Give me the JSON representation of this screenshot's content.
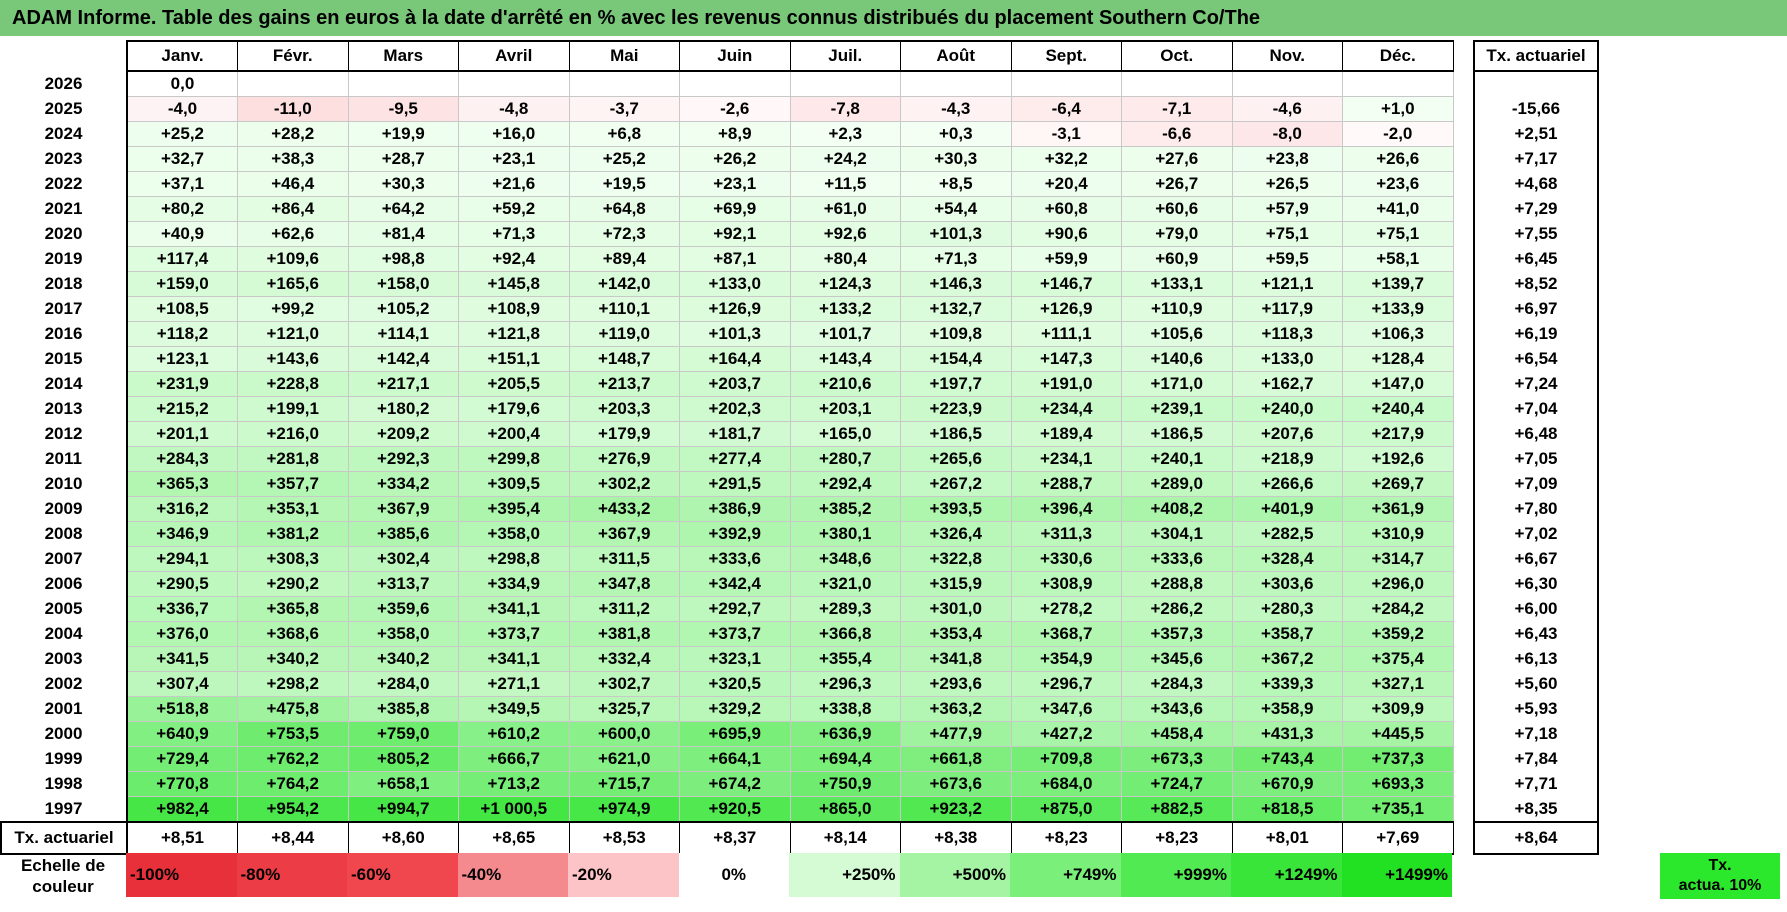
{
  "title": "ADAM Informe. Table des gains en euros à la date d'arrêté en % avec les revenus connus distribués du placement Southern Co/The",
  "months": [
    "Janv.",
    "Févr.",
    "Mars",
    "Avril",
    "Mai",
    "Juin",
    "Juil.",
    "Août",
    "Sept.",
    "Oct.",
    "Nov.",
    "Déc."
  ],
  "ta_header": "Tx. actuariel",
  "rows": [
    {
      "year": "2026",
      "values": [
        "0,0",
        "",
        "",
        "",
        "",
        "",
        "",
        "",
        "",
        "",
        "",
        ""
      ],
      "ta": ""
    },
    {
      "year": "2025",
      "values": [
        "-4,0",
        "-11,0",
        "-9,5",
        "-4,8",
        "-3,7",
        "-2,6",
        "-7,8",
        "-4,3",
        "-6,4",
        "-7,1",
        "-4,6",
        "+1,0"
      ],
      "ta": "-15,66"
    },
    {
      "year": "2024",
      "values": [
        "+25,2",
        "+28,2",
        "+19,9",
        "+16,0",
        "+6,8",
        "+8,9",
        "+2,3",
        "+0,3",
        "-3,1",
        "-6,6",
        "-8,0",
        "-2,0"
      ],
      "ta": "+2,51"
    },
    {
      "year": "2023",
      "values": [
        "+32,7",
        "+38,3",
        "+28,7",
        "+23,1",
        "+25,2",
        "+26,2",
        "+24,2",
        "+30,3",
        "+32,2",
        "+27,6",
        "+23,8",
        "+26,6"
      ],
      "ta": "+7,17"
    },
    {
      "year": "2022",
      "values": [
        "+37,1",
        "+46,4",
        "+30,3",
        "+21,6",
        "+19,5",
        "+23,1",
        "+11,5",
        "+8,5",
        "+20,4",
        "+26,7",
        "+26,5",
        "+23,6"
      ],
      "ta": "+4,68"
    },
    {
      "year": "2021",
      "values": [
        "+80,2",
        "+86,4",
        "+64,2",
        "+59,2",
        "+64,8",
        "+69,9",
        "+61,0",
        "+54,4",
        "+60,8",
        "+60,6",
        "+57,9",
        "+41,0"
      ],
      "ta": "+7,29"
    },
    {
      "year": "2020",
      "values": [
        "+40,9",
        "+62,6",
        "+81,4",
        "+71,3",
        "+72,3",
        "+92,1",
        "+92,6",
        "+101,3",
        "+90,6",
        "+79,0",
        "+75,1",
        "+75,1"
      ],
      "ta": "+7,55"
    },
    {
      "year": "2019",
      "values": [
        "+117,4",
        "+109,6",
        "+98,8",
        "+92,4",
        "+89,4",
        "+87,1",
        "+80,4",
        "+71,3",
        "+59,9",
        "+60,9",
        "+59,5",
        "+58,1"
      ],
      "ta": "+6,45"
    },
    {
      "year": "2018",
      "values": [
        "+159,0",
        "+165,6",
        "+158,0",
        "+145,8",
        "+142,0",
        "+133,0",
        "+124,3",
        "+146,3",
        "+146,7",
        "+133,1",
        "+121,1",
        "+139,7"
      ],
      "ta": "+8,52"
    },
    {
      "year": "2017",
      "values": [
        "+108,5",
        "+99,2",
        "+105,2",
        "+108,9",
        "+110,1",
        "+126,9",
        "+133,2",
        "+132,7",
        "+126,9",
        "+110,9",
        "+117,9",
        "+133,9"
      ],
      "ta": "+6,97"
    },
    {
      "year": "2016",
      "values": [
        "+118,2",
        "+121,0",
        "+114,1",
        "+121,8",
        "+119,0",
        "+101,3",
        "+101,7",
        "+109,8",
        "+111,1",
        "+105,6",
        "+118,3",
        "+106,3"
      ],
      "ta": "+6,19"
    },
    {
      "year": "2015",
      "values": [
        "+123,1",
        "+143,6",
        "+142,4",
        "+151,1",
        "+148,7",
        "+164,4",
        "+143,4",
        "+154,4",
        "+147,3",
        "+140,6",
        "+133,0",
        "+128,4"
      ],
      "ta": "+6,54"
    },
    {
      "year": "2014",
      "values": [
        "+231,9",
        "+228,8",
        "+217,1",
        "+205,5",
        "+213,7",
        "+203,7",
        "+210,6",
        "+197,7",
        "+191,0",
        "+171,0",
        "+162,7",
        "+147,0"
      ],
      "ta": "+7,24"
    },
    {
      "year": "2013",
      "values": [
        "+215,2",
        "+199,1",
        "+180,2",
        "+179,6",
        "+203,3",
        "+202,3",
        "+203,1",
        "+223,9",
        "+234,4",
        "+239,1",
        "+240,0",
        "+240,4"
      ],
      "ta": "+7,04"
    },
    {
      "year": "2012",
      "values": [
        "+201,1",
        "+216,0",
        "+209,2",
        "+200,4",
        "+179,9",
        "+181,7",
        "+165,0",
        "+186,5",
        "+189,4",
        "+186,5",
        "+207,6",
        "+217,9"
      ],
      "ta": "+6,48"
    },
    {
      "year": "2011",
      "values": [
        "+284,3",
        "+281,8",
        "+292,3",
        "+299,8",
        "+276,9",
        "+277,4",
        "+280,7",
        "+265,6",
        "+234,1",
        "+240,1",
        "+218,9",
        "+192,6"
      ],
      "ta": "+7,05"
    },
    {
      "year": "2010",
      "values": [
        "+365,3",
        "+357,7",
        "+334,2",
        "+309,5",
        "+302,2",
        "+291,5",
        "+292,4",
        "+267,2",
        "+288,7",
        "+289,0",
        "+266,6",
        "+269,7"
      ],
      "ta": "+7,09"
    },
    {
      "year": "2009",
      "values": [
        "+316,2",
        "+353,1",
        "+367,9",
        "+395,4",
        "+433,2",
        "+386,9",
        "+385,2",
        "+393,5",
        "+396,4",
        "+408,2",
        "+401,9",
        "+361,9"
      ],
      "ta": "+7,80"
    },
    {
      "year": "2008",
      "values": [
        "+346,9",
        "+381,2",
        "+385,6",
        "+358,0",
        "+367,9",
        "+392,9",
        "+380,1",
        "+326,4",
        "+311,3",
        "+304,1",
        "+282,5",
        "+310,9"
      ],
      "ta": "+7,02"
    },
    {
      "year": "2007",
      "values": [
        "+294,1",
        "+308,3",
        "+302,4",
        "+298,8",
        "+311,5",
        "+333,6",
        "+348,6",
        "+322,8",
        "+330,6",
        "+333,6",
        "+328,4",
        "+314,7"
      ],
      "ta": "+6,67"
    },
    {
      "year": "2006",
      "values": [
        "+290,5",
        "+290,2",
        "+313,7",
        "+334,9",
        "+347,8",
        "+342,4",
        "+321,0",
        "+315,9",
        "+308,9",
        "+288,8",
        "+303,6",
        "+296,0"
      ],
      "ta": "+6,30"
    },
    {
      "year": "2005",
      "values": [
        "+336,7",
        "+365,8",
        "+359,6",
        "+341,1",
        "+311,2",
        "+292,7",
        "+289,3",
        "+301,0",
        "+278,2",
        "+286,2",
        "+280,3",
        "+284,2"
      ],
      "ta": "+6,00"
    },
    {
      "year": "2004",
      "values": [
        "+376,0",
        "+368,6",
        "+358,0",
        "+373,7",
        "+381,8",
        "+373,7",
        "+366,8",
        "+353,4",
        "+368,7",
        "+357,3",
        "+358,7",
        "+359,2"
      ],
      "ta": "+6,43"
    },
    {
      "year": "2003",
      "values": [
        "+341,5",
        "+340,2",
        "+340,2",
        "+341,1",
        "+332,4",
        "+323,1",
        "+355,4",
        "+341,8",
        "+354,9",
        "+345,6",
        "+367,2",
        "+375,4"
      ],
      "ta": "+6,13"
    },
    {
      "year": "2002",
      "values": [
        "+307,4",
        "+298,2",
        "+284,0",
        "+271,1",
        "+302,7",
        "+320,5",
        "+296,3",
        "+293,6",
        "+296,7",
        "+284,3",
        "+339,3",
        "+327,1"
      ],
      "ta": "+5,60"
    },
    {
      "year": "2001",
      "values": [
        "+518,8",
        "+475,8",
        "+385,8",
        "+349,5",
        "+325,7",
        "+329,2",
        "+338,8",
        "+363,2",
        "+347,6",
        "+343,6",
        "+358,9",
        "+309,9"
      ],
      "ta": "+5,93"
    },
    {
      "year": "2000",
      "values": [
        "+640,9",
        "+753,5",
        "+759,0",
        "+610,2",
        "+600,0",
        "+695,9",
        "+636,9",
        "+477,9",
        "+427,2",
        "+458,4",
        "+431,3",
        "+445,5"
      ],
      "ta": "+7,18"
    },
    {
      "year": "1999",
      "values": [
        "+729,4",
        "+762,2",
        "+805,2",
        "+666,7",
        "+621,0",
        "+664,1",
        "+694,4",
        "+661,8",
        "+709,8",
        "+673,3",
        "+743,4",
        "+737,3"
      ],
      "ta": "+7,84"
    },
    {
      "year": "1998",
      "values": [
        "+770,8",
        "+764,2",
        "+658,1",
        "+713,2",
        "+715,7",
        "+674,2",
        "+750,9",
        "+673,6",
        "+684,0",
        "+724,7",
        "+670,9",
        "+693,3"
      ],
      "ta": "+7,71"
    },
    {
      "year": "1997",
      "values": [
        "+982,4",
        "+954,2",
        "+994,7",
        "+1 000,5",
        "+974,9",
        "+920,5",
        "+865,0",
        "+923,2",
        "+875,0",
        "+882,5",
        "+818,5",
        "+735,1"
      ],
      "ta": "+8,35"
    }
  ],
  "footer": {
    "label": "Tx. actuariel",
    "values": [
      "+8,51",
      "+8,44",
      "+8,60",
      "+8,65",
      "+8,53",
      "+8,37",
      "+8,14",
      "+8,38",
      "+8,23",
      "+8,23",
      "+8,01",
      "+7,69"
    ],
    "ta": "+8,64"
  },
  "legend": {
    "label_line1": "Echelle de",
    "label_line2": "couleur",
    "swatches": [
      {
        "label": "-100%",
        "color": "#e8303a",
        "kind": "neg"
      },
      {
        "label": "-80%",
        "color": "#ec3c45",
        "kind": "neg"
      },
      {
        "label": "-60%",
        "color": "#f0464e",
        "kind": "neg"
      },
      {
        "label": "-40%",
        "color": "#f58a8e",
        "kind": "neg"
      },
      {
        "label": "-20%",
        "color": "#fcc4c6",
        "kind": "neg"
      },
      {
        "label": "0%",
        "color": "#ffffff",
        "kind": "zero"
      },
      {
        "label": "+250%",
        "color": "#d4fbd4",
        "kind": "pos"
      },
      {
        "label": "+500%",
        "color": "#a4f4a4",
        "kind": "pos"
      },
      {
        "label": "+749%",
        "color": "#7aef7a",
        "kind": "pos"
      },
      {
        "label": "+999%",
        "color": "#52ea52",
        "kind": "pos"
      },
      {
        "label": "+1249%",
        "color": "#38e538",
        "kind": "pos"
      },
      {
        "label": "+1499%",
        "color": "#22e022",
        "kind": "pos"
      }
    ],
    "ta_line1": "Tx.",
    "ta_line2": "actua. 10%",
    "ta_color": "#2ce82c"
  }
}
